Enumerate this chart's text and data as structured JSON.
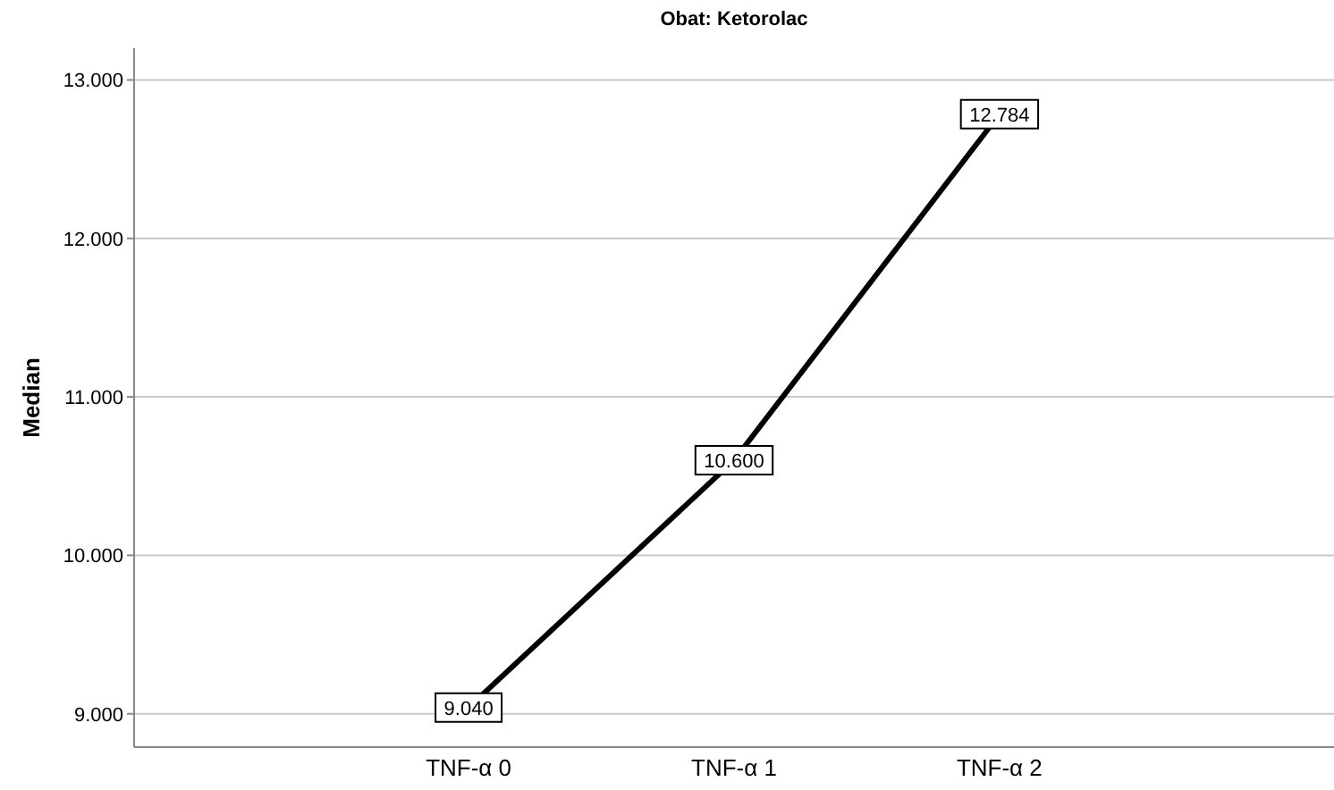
{
  "chart_data": {
    "type": "line",
    "title": "Obat: Ketorolac",
    "ylabel": "Median",
    "categories": [
      "TNF-α 0",
      "TNF-α 1",
      "TNF-α 2"
    ],
    "series": [
      {
        "color": "#000000",
        "values": [
          9040,
          10600,
          12784
        ],
        "value_labels": [
          "9.040",
          "10.600",
          "12.784"
        ]
      }
    ],
    "ylim": [
      8790,
      13200
    ],
    "yticks": [
      {
        "value": 9000,
        "label": "9.000"
      },
      {
        "value": 10000,
        "label": "10.000"
      },
      {
        "value": 11000,
        "label": "11.000"
      },
      {
        "value": 12000,
        "label": "12.000"
      },
      {
        "value": 13000,
        "label": "13.000"
      }
    ],
    "grid": "y",
    "line_style": "solid",
    "marker": "square"
  }
}
